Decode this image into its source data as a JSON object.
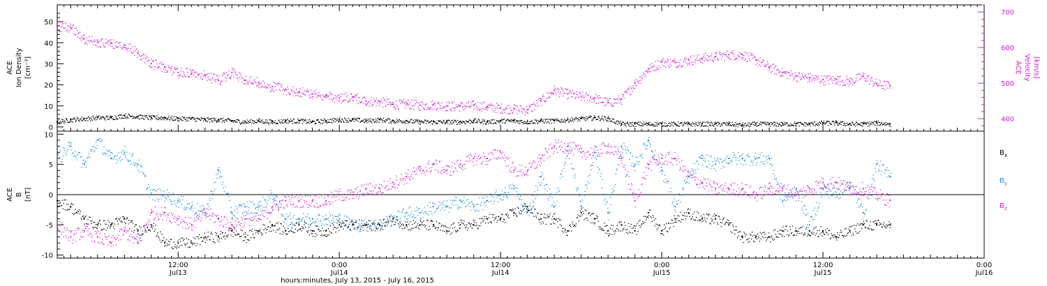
{
  "xaxis": {
    "title": "hours:minutes, July 13, 2015 - July 16, 2015",
    "range_hours": [
      3,
      72
    ],
    "ticks": [
      {
        "hour": 12,
        "time": "12:00",
        "day": "Jul13"
      },
      {
        "hour": 24,
        "time": "0:00",
        "day": "Jul14"
      },
      {
        "hour": 36,
        "time": "12:00",
        "day": "Jul14"
      },
      {
        "hour": 48,
        "time": "0:00",
        "day": "Jul15"
      },
      {
        "hour": 60,
        "time": "12:00",
        "day": "Jul15"
      },
      {
        "hour": 72,
        "time": "0:00",
        "day": "Jul16"
      }
    ]
  },
  "colors": {
    "ion_density": "#000000",
    "velocity": "#d41ad4",
    "bx": "#000000",
    "by": "#1a8ae6",
    "bz": "#d41ad4",
    "axis": "#000000"
  },
  "chart_data": [
    {
      "type": "scatter",
      "panel": "top",
      "left_axis": {
        "label_lines": [
          "ACE",
          "Ion Density",
          "[cm⁻³]"
        ],
        "range": [
          -2,
          58
        ],
        "ticks": [
          0,
          10,
          20,
          30,
          40,
          50
        ]
      },
      "right_axis": {
        "label_lines": [
          "ACE",
          "Velocity",
          "[km/s]"
        ],
        "range": [
          365,
          720
        ],
        "ticks": [
          400,
          500,
          600,
          700
        ]
      },
      "series": [
        {
          "name": "Ion Density",
          "axis": "left",
          "hours": [
            3.0,
            4.0,
            5.0,
            6.0,
            7.0,
            8.0,
            9.0,
            10.0,
            11.0,
            12.0,
            13.0,
            14.0,
            15.0,
            16.0,
            17.0,
            18.0,
            19.0,
            20.0,
            21.0,
            22.0,
            23.0,
            24.0,
            25.0,
            26.0,
            27.0,
            28.0,
            29.0,
            30.0,
            31.0,
            32.0,
            33.0,
            34.0,
            35.0,
            36.0,
            37.0,
            38.0,
            39.0,
            40.0,
            41.0,
            42.0,
            43.0,
            44.0,
            45.0,
            46.0,
            47.0,
            48.0,
            49.0,
            50.0,
            51.0,
            52.0,
            53.0,
            54.0,
            55.0,
            56.0,
            57.0,
            58.0,
            59.0,
            60.0,
            61.0,
            62.0,
            63.0,
            64.0,
            65.0
          ],
          "values": [
            2.5,
            3.5,
            4.0,
            4.5,
            4.5,
            5.5,
            5.0,
            4.5,
            4.5,
            4.0,
            4.0,
            3.5,
            3.5,
            3.0,
            2.5,
            3.0,
            2.5,
            3.0,
            3.0,
            2.5,
            3.0,
            3.5,
            3.5,
            3.0,
            3.5,
            3.0,
            3.0,
            2.5,
            2.5,
            2.5,
            2.5,
            3.0,
            2.5,
            3.0,
            3.0,
            2.5,
            3.0,
            3.0,
            3.5,
            4.0,
            4.5,
            4.0,
            1.5,
            1.5,
            1.5,
            1.5,
            1.5,
            1.5,
            1.5,
            1.5,
            1.5,
            1.0,
            1.5,
            1.5,
            1.5,
            1.5,
            1.5,
            2.0,
            2.0,
            1.5,
            1.5,
            2.0,
            1.5
          ]
        },
        {
          "name": "Velocity",
          "axis": "right",
          "hours": [
            3.0,
            4.0,
            5.0,
            6.0,
            7.0,
            8.0,
            9.0,
            10.0,
            11.0,
            12.0,
            13.0,
            14.0,
            15.0,
            16.0,
            17.0,
            18.0,
            19.0,
            20.0,
            21.0,
            22.0,
            23.0,
            24.0,
            25.0,
            26.0,
            27.0,
            28.0,
            29.0,
            30.0,
            31.0,
            32.0,
            33.0,
            34.0,
            35.0,
            36.0,
            37.0,
            38.0,
            39.0,
            40.0,
            41.0,
            42.0,
            43.0,
            44.0,
            45.0,
            46.0,
            47.0,
            48.0,
            49.0,
            50.0,
            51.0,
            52.0,
            53.0,
            54.0,
            55.0,
            56.0,
            57.0,
            58.0,
            59.0,
            60.0,
            61.0,
            62.0,
            63.0,
            64.0,
            65.0
          ],
          "values": [
            660,
            655,
            625,
            615,
            612,
            608,
            585,
            555,
            545,
            530,
            528,
            522,
            508,
            530,
            508,
            502,
            490,
            482,
            476,
            470,
            465,
            458,
            462,
            450,
            448,
            440,
            442,
            438,
            440,
            436,
            436,
            438,
            434,
            430,
            428,
            425,
            450,
            480,
            470,
            462,
            458,
            445,
            455,
            500,
            540,
            560,
            558,
            565,
            570,
            575,
            580,
            580,
            565,
            545,
            530,
            520,
            515,
            510,
            510,
            505,
            520,
            498,
            492
          ]
        }
      ]
    },
    {
      "type": "scatter",
      "panel": "bottom",
      "left_axis": {
        "label_lines": [
          "ACE",
          "B",
          "[nT]"
        ],
        "range": [
          -10.5,
          10.5
        ],
        "ticks": [
          -10,
          -5,
          0,
          5,
          10
        ]
      },
      "legend": [
        "Bx",
        "By",
        "Bz"
      ],
      "series": [
        {
          "name": "Bx",
          "hours": [
            3.0,
            4.0,
            5.0,
            6.0,
            7.0,
            8.0,
            9.0,
            10.0,
            11.0,
            12.0,
            13.0,
            14.0,
            15.0,
            16.0,
            17.0,
            18.0,
            19.0,
            20.0,
            21.0,
            22.0,
            23.0,
            24.0,
            25.0,
            26.0,
            27.0,
            28.0,
            29.0,
            30.0,
            31.0,
            32.0,
            33.0,
            34.0,
            35.0,
            36.0,
            37.0,
            38.0,
            39.0,
            40.0,
            41.0,
            42.0,
            43.0,
            44.0,
            45.0,
            46.0,
            47.0,
            48.0,
            49.0,
            50.0,
            51.0,
            52.0,
            53.0,
            54.0,
            55.0,
            56.0,
            57.0,
            58.0,
            59.0,
            60.0,
            61.0,
            62.0,
            63.0,
            64.0,
            65.0
          ],
          "values": [
            -1,
            -2,
            -4,
            -5,
            -5,
            -4,
            -6,
            -5,
            -8,
            -8,
            -8,
            -7,
            -7,
            -6,
            -7,
            -6,
            -5,
            -6,
            -5,
            -6,
            -6,
            -5,
            -5,
            -5,
            -5,
            -4,
            -5,
            -5,
            -5,
            -6,
            -5,
            -5,
            -4,
            -4,
            -3,
            -2,
            -4,
            -4,
            -6,
            -3,
            -4,
            -6,
            -5,
            -6,
            -3,
            -6,
            -4,
            -3,
            -4,
            -4,
            -5,
            -7,
            -7,
            -7,
            -6,
            -6,
            -6,
            -6,
            -7,
            -6,
            -5,
            -5,
            -5
          ]
        },
        {
          "name": "By",
          "hours": [
            3.0,
            4.0,
            5.0,
            6.0,
            7.0,
            8.0,
            9.0,
            10.0,
            11.0,
            12.0,
            13.0,
            14.0,
            15.0,
            16.0,
            17.0,
            18.0,
            19.0,
            20.0,
            21.0,
            22.0,
            23.0,
            24.0,
            25.0,
            26.0,
            27.0,
            28.0,
            29.0,
            30.0,
            31.0,
            32.0,
            33.0,
            34.0,
            35.0,
            36.0,
            37.0,
            38.0,
            39.0,
            40.0,
            41.0,
            42.0,
            43.0,
            44.0,
            45.0,
            46.0,
            47.0,
            48.0,
            49.0,
            50.0,
            51.0,
            52.0,
            53.0,
            54.0,
            55.0,
            56.0,
            57.0,
            58.0,
            59.0,
            60.0,
            61.0,
            62.0,
            63.0,
            64.0,
            65.0
          ],
          "values": [
            6,
            8,
            5,
            9,
            6,
            7,
            5,
            0,
            0,
            -1,
            -2,
            -3,
            4,
            -3,
            -2,
            -2,
            0,
            -4,
            -4,
            -4,
            -4,
            -4,
            -5,
            -5,
            -5,
            -4,
            -3,
            -3,
            -2,
            -2,
            -1,
            -2,
            -1,
            0,
            1,
            -3,
            3,
            -2,
            8,
            -2,
            7,
            -3,
            8,
            5,
            9,
            4,
            -2,
            3,
            6,
            5,
            6,
            6,
            6,
            6,
            -1,
            1,
            -5,
            1,
            0,
            2,
            -3,
            5,
            3
          ]
        },
        {
          "name": "Bz",
          "hours": [
            3.0,
            4.0,
            5.0,
            6.0,
            7.0,
            8.0,
            9.0,
            10.0,
            11.0,
            12.0,
            13.0,
            14.0,
            15.0,
            16.0,
            17.0,
            18.0,
            19.0,
            20.0,
            21.0,
            22.0,
            23.0,
            24.0,
            25.0,
            26.0,
            27.0,
            28.0,
            29.0,
            30.0,
            31.0,
            32.0,
            33.0,
            34.0,
            35.0,
            36.0,
            37.0,
            38.0,
            39.0,
            40.0,
            41.0,
            42.0,
            43.0,
            44.0,
            45.0,
            46.0,
            47.0,
            48.0,
            49.0,
            50.0,
            51.0,
            52.0,
            53.0,
            54.0,
            55.0,
            56.0,
            57.0,
            58.0,
            59.0,
            60.0,
            61.0,
            62.0,
            63.0,
            64.0,
            65.0
          ],
          "values": [
            -5,
            -7,
            -6,
            -7,
            -8,
            -6,
            -8,
            -3,
            -3,
            -4,
            -5,
            -3,
            -4,
            -5,
            -4,
            -4,
            -2,
            -1,
            -1,
            -1,
            -1,
            0,
            0,
            1,
            1,
            2,
            3,
            4,
            5,
            4,
            5,
            6,
            6,
            7,
            4,
            4,
            6,
            8,
            8,
            7,
            7,
            8,
            6,
            -1,
            5,
            6,
            6,
            3,
            2,
            1,
            1,
            1,
            0,
            1,
            1,
            0,
            1,
            2,
            2,
            1,
            1,
            0,
            -1
          ]
        }
      ]
    }
  ]
}
